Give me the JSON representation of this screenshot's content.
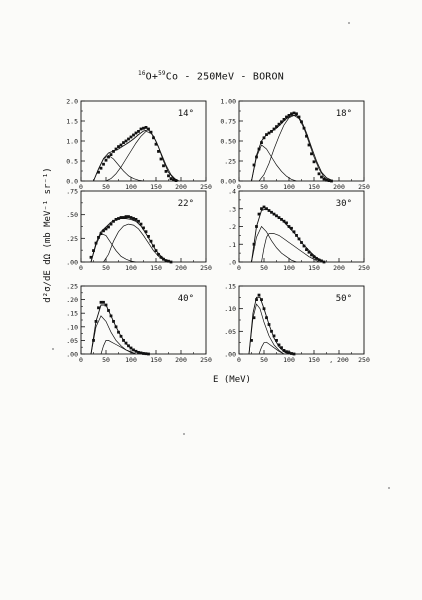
{
  "title": {
    "proj_mass": "16",
    "proj_symbol": "O+",
    "targ_mass": "59",
    "targ_symbol": "Co",
    "rest": " - 250MeV  - BORON"
  },
  "y_axis_label": "d²σ/dE dΩ  (mb MeV⁻¹ sr⁻¹)",
  "x_axis_label": "E (MeV)",
  "colors": {
    "ink": "#111111",
    "paper": "#fbfbf9"
  },
  "chart_data": [
    {
      "type": "scatter",
      "angle_label": "14°",
      "xlim": [
        0,
        250
      ],
      "ylim": [
        0,
        2.0
      ],
      "yticks": [
        "0.0",
        "0.5",
        "1.0",
        "1.5",
        "2.0"
      ],
      "ytick_values": [
        0,
        0.5,
        1.0,
        1.5,
        2.0
      ],
      "xticks": [
        "0",
        "50",
        "100",
        "150",
        "200",
        "250"
      ],
      "data": {
        "x": [
          35,
          40,
          45,
          50,
          55,
          60,
          65,
          70,
          75,
          80,
          85,
          90,
          95,
          100,
          105,
          110,
          115,
          120,
          125,
          130,
          135,
          140,
          145,
          150,
          155,
          160,
          165,
          170,
          175,
          180,
          185,
          190
        ],
        "y": [
          0.22,
          0.32,
          0.42,
          0.52,
          0.6,
          0.66,
          0.74,
          0.8,
          0.86,
          0.9,
          0.96,
          1.0,
          1.05,
          1.1,
          1.15,
          1.2,
          1.24,
          1.3,
          1.32,
          1.34,
          1.3,
          1.22,
          1.08,
          0.92,
          0.74,
          0.55,
          0.38,
          0.24,
          0.13,
          0.06,
          0.03,
          0.01
        ]
      },
      "curves": [
        {
          "x": [
            25,
            35,
            45,
            55,
            65,
            75,
            85,
            95,
            105,
            115,
            125
          ],
          "y": [
            0,
            0.3,
            0.55,
            0.64,
            0.55,
            0.4,
            0.25,
            0.13,
            0.06,
            0.02,
            0
          ]
        },
        {
          "x": [
            50,
            60,
            70,
            80,
            90,
            100,
            110,
            120,
            130,
            140,
            150,
            160,
            170,
            180,
            190
          ],
          "y": [
            0,
            0.06,
            0.18,
            0.35,
            0.55,
            0.75,
            0.95,
            1.12,
            1.24,
            1.2,
            1.0,
            0.7,
            0.4,
            0.16,
            0.03
          ]
        },
        {
          "x": [
            25,
            35,
            45,
            55,
            65,
            75,
            85,
            95,
            105,
            115,
            125,
            135,
            145,
            155,
            165,
            175,
            185,
            195
          ],
          "y": [
            0,
            0.3,
            0.56,
            0.7,
            0.75,
            0.8,
            0.88,
            0.96,
            1.05,
            1.16,
            1.25,
            1.28,
            1.12,
            0.85,
            0.5,
            0.22,
            0.07,
            0.01
          ]
        }
      ]
    },
    {
      "type": "scatter",
      "angle_label": "18°",
      "xlim": [
        0,
        250
      ],
      "ylim": [
        0,
        1.0
      ],
      "yticks": [
        "0.00",
        ".25",
        "0.50",
        "0.75",
        "1.00"
      ],
      "ytick_values": [
        0,
        0.25,
        0.5,
        0.75,
        1.0
      ],
      "xticks": [
        "0",
        "50",
        "100",
        "150",
        "200",
        "250"
      ],
      "data": {
        "x": [
          30,
          35,
          40,
          45,
          50,
          55,
          60,
          65,
          70,
          75,
          80,
          85,
          90,
          95,
          100,
          105,
          110,
          115,
          120,
          125,
          130,
          135,
          140,
          145,
          150,
          155,
          160,
          165,
          170,
          175,
          180,
          185
        ],
        "y": [
          0.2,
          0.3,
          0.4,
          0.48,
          0.54,
          0.58,
          0.6,
          0.62,
          0.65,
          0.68,
          0.71,
          0.74,
          0.77,
          0.8,
          0.82,
          0.84,
          0.85,
          0.84,
          0.8,
          0.74,
          0.66,
          0.56,
          0.45,
          0.34,
          0.24,
          0.15,
          0.09,
          0.05,
          0.025,
          0.01,
          0.005,
          0
        ]
      },
      "curves": [
        {
          "x": [
            25,
            35,
            45,
            55,
            65,
            75,
            85,
            95,
            105,
            115
          ],
          "y": [
            0,
            0.3,
            0.45,
            0.4,
            0.3,
            0.2,
            0.12,
            0.06,
            0.02,
            0
          ]
        },
        {
          "x": [
            40,
            50,
            60,
            70,
            80,
            90,
            100,
            110,
            120,
            130,
            140,
            150,
            160,
            170,
            180
          ],
          "y": [
            0,
            0.08,
            0.22,
            0.4,
            0.56,
            0.7,
            0.79,
            0.82,
            0.78,
            0.66,
            0.48,
            0.3,
            0.15,
            0.05,
            0
          ]
        },
        {
          "x": [
            25,
            35,
            45,
            55,
            65,
            75,
            85,
            95,
            105,
            115,
            125,
            135,
            145,
            155,
            165,
            175,
            185
          ],
          "y": [
            0,
            0.32,
            0.5,
            0.58,
            0.62,
            0.66,
            0.72,
            0.78,
            0.82,
            0.82,
            0.75,
            0.6,
            0.42,
            0.25,
            0.11,
            0.04,
            0.01
          ]
        }
      ]
    },
    {
      "type": "scatter",
      "angle_label": "22°",
      "xlim": [
        0,
        250
      ],
      "ylim": [
        0,
        0.75
      ],
      "yticks": [
        ".00",
        ".25",
        ".50",
        ".75"
      ],
      "ytick_values": [
        0,
        0.25,
        0.5,
        0.75
      ],
      "xticks": [
        "0",
        "50",
        "100",
        "150",
        "200",
        "250"
      ],
      "data": {
        "x": [
          20,
          25,
          30,
          35,
          40,
          45,
          50,
          55,
          60,
          65,
          70,
          75,
          80,
          85,
          90,
          95,
          100,
          105,
          110,
          115,
          120,
          125,
          130,
          135,
          140,
          145,
          150,
          155,
          160,
          165,
          170,
          175,
          180
        ],
        "y": [
          0.05,
          0.12,
          0.2,
          0.26,
          0.3,
          0.33,
          0.35,
          0.37,
          0.4,
          0.43,
          0.45,
          0.46,
          0.47,
          0.47,
          0.48,
          0.48,
          0.47,
          0.46,
          0.45,
          0.43,
          0.4,
          0.36,
          0.32,
          0.27,
          0.22,
          0.17,
          0.12,
          0.08,
          0.05,
          0.03,
          0.015,
          0.008,
          0
        ]
      },
      "curves": [
        {
          "x": [
            20,
            30,
            40,
            50,
            60,
            70,
            80,
            90,
            100,
            110
          ],
          "y": [
            0,
            0.18,
            0.3,
            0.28,
            0.2,
            0.12,
            0.06,
            0.03,
            0.01,
            0
          ]
        },
        {
          "x": [
            45,
            55,
            65,
            75,
            85,
            95,
            105,
            115,
            125,
            135,
            145,
            155,
            165,
            175
          ],
          "y": [
            0,
            0.08,
            0.22,
            0.32,
            0.38,
            0.4,
            0.39,
            0.35,
            0.28,
            0.2,
            0.12,
            0.06,
            0.02,
            0
          ]
        },
        {
          "x": [
            20,
            30,
            40,
            50,
            60,
            70,
            80,
            90,
            100,
            110,
            120,
            130,
            140,
            150,
            160,
            170,
            180
          ],
          "y": [
            0,
            0.2,
            0.32,
            0.37,
            0.42,
            0.45,
            0.46,
            0.46,
            0.45,
            0.43,
            0.38,
            0.3,
            0.21,
            0.12,
            0.06,
            0.02,
            0
          ]
        }
      ]
    },
    {
      "type": "scatter",
      "angle_label": "30°",
      "xlim": [
        0,
        250
      ],
      "ylim": [
        0,
        0.4
      ],
      "yticks": [
        ".0",
        ".1",
        ".2",
        ".3",
        ".4"
      ],
      "ytick_values": [
        0,
        0.1,
        0.2,
        0.3,
        0.4
      ],
      "xticks": [
        "0",
        "50",
        "100",
        "150",
        "200",
        "250"
      ],
      "data": {
        "x": [
          30,
          35,
          40,
          45,
          50,
          55,
          60,
          65,
          70,
          75,
          80,
          85,
          90,
          95,
          100,
          105,
          110,
          115,
          120,
          125,
          130,
          135,
          140,
          145,
          150,
          155,
          160,
          165,
          170
        ],
        "y": [
          0.1,
          0.2,
          0.27,
          0.3,
          0.31,
          0.3,
          0.29,
          0.28,
          0.27,
          0.26,
          0.25,
          0.24,
          0.23,
          0.22,
          0.2,
          0.19,
          0.17,
          0.15,
          0.13,
          0.11,
          0.09,
          0.07,
          0.055,
          0.04,
          0.03,
          0.02,
          0.012,
          0.006,
          0
        ]
      },
      "curves": [
        {
          "x": [
            25,
            35,
            45,
            55,
            65,
            75,
            85,
            95,
            105,
            115
          ],
          "y": [
            0,
            0.14,
            0.2,
            0.17,
            0.12,
            0.08,
            0.05,
            0.03,
            0.01,
            0
          ]
        },
        {
          "x": [
            45,
            50,
            55,
            60,
            70,
            80,
            90,
            100,
            110,
            120,
            130,
            140,
            150,
            160
          ],
          "y": [
            0,
            0.08,
            0.14,
            0.16,
            0.16,
            0.15,
            0.13,
            0.11,
            0.09,
            0.07,
            0.05,
            0.03,
            0.015,
            0
          ]
        },
        {
          "x": [
            25,
            35,
            45,
            55,
            65,
            75,
            85,
            95,
            105,
            115,
            125,
            135,
            145,
            155,
            165
          ],
          "y": [
            0,
            0.2,
            0.29,
            0.3,
            0.28,
            0.26,
            0.24,
            0.21,
            0.18,
            0.15,
            0.11,
            0.08,
            0.05,
            0.025,
            0.01
          ]
        }
      ]
    },
    {
      "type": "scatter",
      "angle_label": "40°",
      "xlim": [
        0,
        250
      ],
      "ylim": [
        0,
        0.25
      ],
      "yticks": [
        ".00",
        ".05",
        ".10",
        ".15",
        ".20",
        ".25"
      ],
      "ytick_values": [
        0,
        0.05,
        0.1,
        0.15,
        0.2,
        0.25
      ],
      "xticks": [
        "0",
        "50",
        "100",
        "150",
        "200",
        "250"
      ],
      "data": {
        "x": [
          25,
          30,
          35,
          40,
          45,
          50,
          55,
          60,
          65,
          70,
          75,
          80,
          85,
          90,
          95,
          100,
          105,
          110,
          115,
          120,
          125,
          130,
          135
        ],
        "y": [
          0.05,
          0.12,
          0.17,
          0.19,
          0.19,
          0.18,
          0.16,
          0.14,
          0.12,
          0.1,
          0.08,
          0.065,
          0.05,
          0.04,
          0.03,
          0.022,
          0.015,
          0.01,
          0.006,
          0.004,
          0.002,
          0.001,
          0
        ]
      },
      "curves": [
        {
          "x": [
            20,
            30,
            40,
            50,
            60,
            70,
            80,
            90,
            100,
            110
          ],
          "y": [
            0,
            0.1,
            0.14,
            0.12,
            0.08,
            0.05,
            0.03,
            0.015,
            0.005,
            0
          ]
        },
        {
          "x": [
            40,
            45,
            50,
            55,
            60,
            70,
            80,
            90,
            100,
            110
          ],
          "y": [
            0,
            0.03,
            0.05,
            0.05,
            0.045,
            0.035,
            0.025,
            0.015,
            0.008,
            0
          ]
        },
        {
          "x": [
            20,
            30,
            40,
            50,
            60,
            70,
            80,
            90,
            100,
            110,
            120,
            130
          ],
          "y": [
            0,
            0.12,
            0.18,
            0.18,
            0.14,
            0.1,
            0.065,
            0.038,
            0.02,
            0.01,
            0.004,
            0
          ]
        }
      ]
    },
    {
      "type": "scatter",
      "angle_label": "50°",
      "xlim": [
        0,
        250
      ],
      "ylim": [
        0,
        0.15
      ],
      "yticks": [
        ".00",
        ".05",
        ".10",
        ".15"
      ],
      "ytick_values": [
        0,
        0.05,
        0.1,
        0.15
      ],
      "xticks": [
        "0",
        "50",
        "100",
        "150",
        ", 200",
        "250"
      ],
      "data": {
        "x": [
          25,
          30,
          35,
          40,
          45,
          50,
          55,
          60,
          65,
          70,
          75,
          80,
          85,
          90,
          95,
          100,
          105,
          110
        ],
        "y": [
          0.03,
          0.08,
          0.12,
          0.13,
          0.12,
          0.1,
          0.08,
          0.065,
          0.05,
          0.04,
          0.03,
          0.02,
          0.014,
          0.008,
          0.005,
          0.003,
          0.001,
          0
        ]
      },
      "curves": [
        {
          "x": [
            20,
            28,
            35,
            42,
            50,
            60,
            70,
            80,
            90
          ],
          "y": [
            0,
            0.08,
            0.11,
            0.1,
            0.07,
            0.04,
            0.02,
            0.008,
            0
          ]
        },
        {
          "x": [
            40,
            45,
            50,
            55,
            60,
            70,
            80,
            90
          ],
          "y": [
            0,
            0.015,
            0.025,
            0.026,
            0.022,
            0.014,
            0.006,
            0
          ]
        },
        {
          "x": [
            20,
            28,
            35,
            42,
            50,
            60,
            70,
            80,
            90,
            100
          ],
          "y": [
            0,
            0.09,
            0.125,
            0.125,
            0.1,
            0.065,
            0.035,
            0.016,
            0.005,
            0
          ]
        }
      ]
    }
  ]
}
